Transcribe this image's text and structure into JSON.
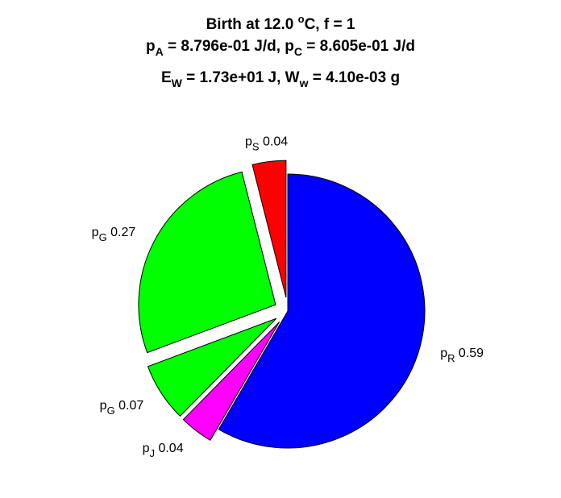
{
  "title": {
    "line1": "Birth at 12.0 °C, f = 1",
    "line2": "p_A = 8.796e-01 J/d, p_C = 8.605e-01 J/d",
    "line3": "E_W = 1.73e+01 J, W_w = 4.10e-03 g"
  },
  "title_parts": {
    "l1_pre": "Birth at 12.0 ",
    "l1_sup": "o",
    "l1_post": "C, f = 1",
    "l2_a": "p",
    "l2_a_sub": "A",
    "l2_mid": " = 8.796e-01 J/d, p",
    "l2_c_sub": "C",
    "l2_end": " = 8.605e-01 J/d",
    "l3_a": "E",
    "l3_a_sub": "W",
    "l3_mid": " = 1.73e+01 J, W",
    "l3_w_sub": "w",
    "l3_end": " = 4.10e-03 g"
  },
  "chart_data": {
    "type": "pie",
    "title": "Birth at 12.0 °C, f = 1; p_A = 8.796e-01 J/d, p_C = 8.605e-01 J/d; E_W = 1.73e+01 J, W_w = 4.10e-03 g",
    "slices": [
      {
        "symbol": "p",
        "sub": "R",
        "value": 0.59,
        "value_label": "0.59",
        "color": "#0000ff",
        "exploded": false
      },
      {
        "symbol": "p",
        "sub": "J",
        "value": 0.04,
        "value_label": "0.04",
        "color": "#ff00ff",
        "exploded": true
      },
      {
        "symbol": "p",
        "sub": "G",
        "value": 0.07,
        "value_label": "0.07",
        "color": "#00ff00",
        "exploded": true
      },
      {
        "symbol": "p",
        "sub": "G",
        "value": 0.27,
        "value_label": "0.27",
        "color": "#00ff00",
        "exploded": true
      },
      {
        "symbol": "p",
        "sub": "S",
        "value": 0.04,
        "value_label": "0.04",
        "color": "#ff0000",
        "exploded": true
      }
    ]
  }
}
